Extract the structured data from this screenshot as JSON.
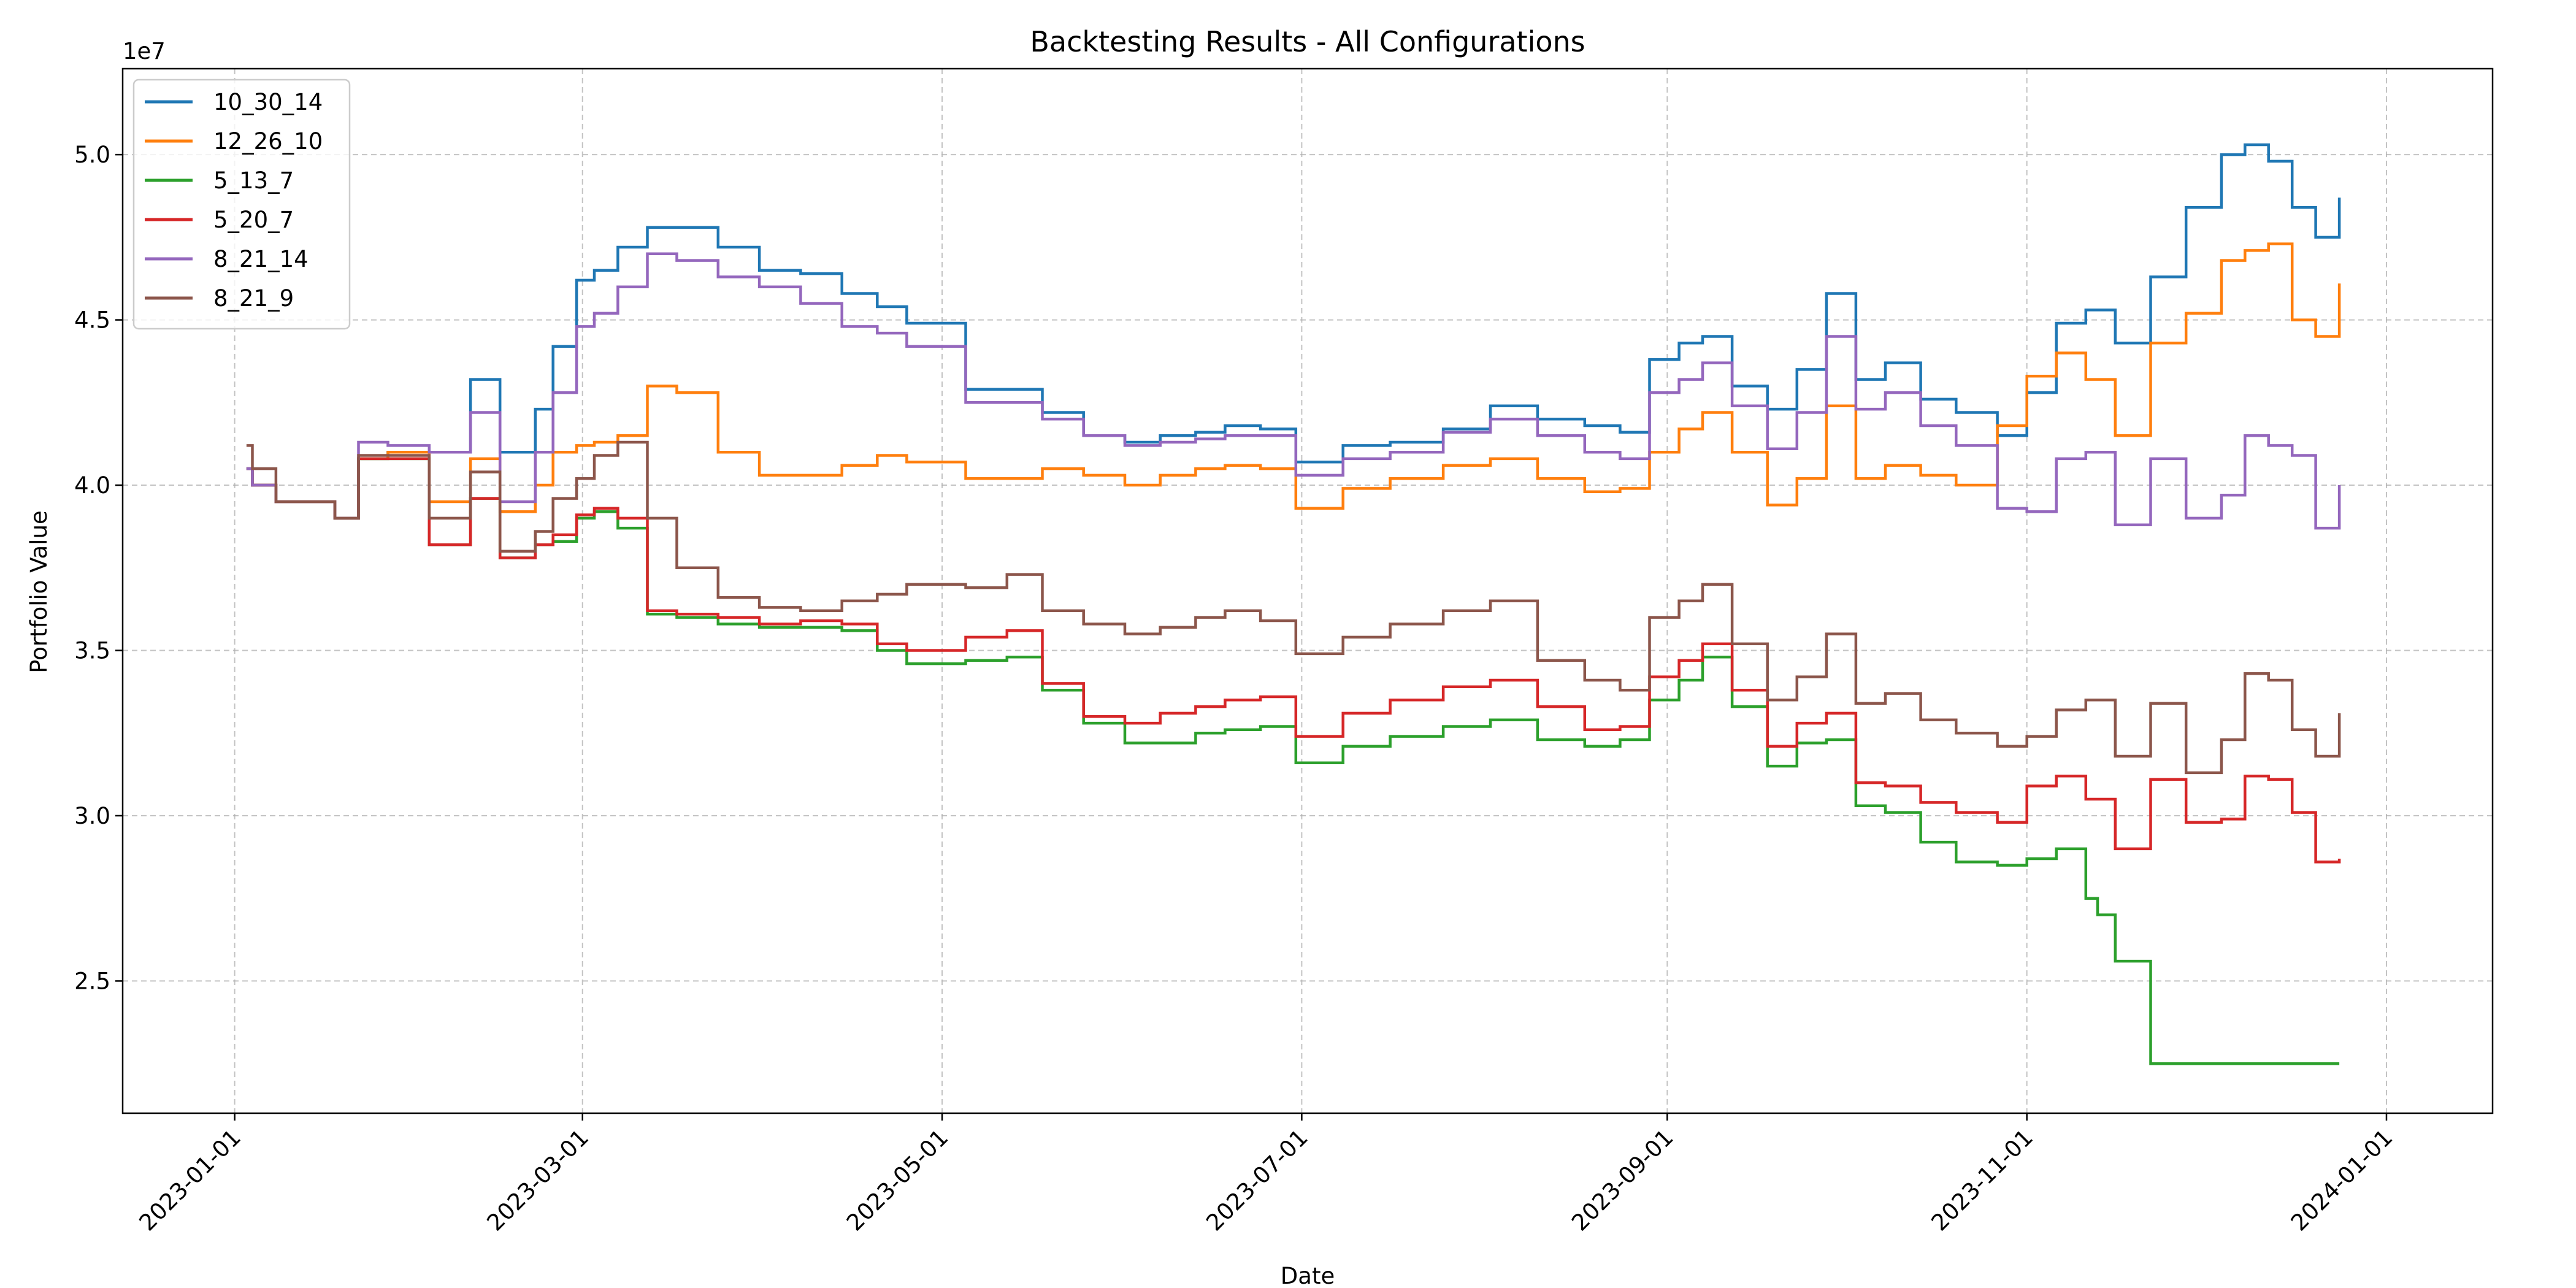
{
  "chart_data": {
    "type": "line",
    "title": "Backtesting Results - All Configurations",
    "xlabel": "Date",
    "ylabel": "Portfolio Value",
    "y_offset_label": "1e7",
    "y_scale": 10000000,
    "xlim": [
      "2022-12-13",
      "2024-01-19"
    ],
    "ylim": [
      21000000,
      52600000
    ],
    "x_ticks": [
      "2023-01-01",
      "2023-03-01",
      "2023-05-01",
      "2023-07-01",
      "2023-09-01",
      "2023-11-01",
      "2024-01-01"
    ],
    "y_ticks": [
      25000000,
      30000000,
      35000000,
      40000000,
      45000000,
      50000000
    ],
    "y_tick_labels": [
      "2.5",
      "3.0",
      "3.5",
      "4.0",
      "4.5",
      "5.0"
    ],
    "grid": true,
    "legend_position": "upper-left",
    "series": [
      {
        "name": "10_30_14",
        "color": "#1f77b4",
        "x": [
          "2023-01-03",
          "2023-01-04",
          "2023-01-08",
          "2023-01-12",
          "2023-01-18",
          "2023-01-22",
          "2023-01-27",
          "2023-02-03",
          "2023-02-10",
          "2023-02-15",
          "2023-02-21",
          "2023-02-24",
          "2023-02-28",
          "2023-03-03",
          "2023-03-07",
          "2023-03-12",
          "2023-03-17",
          "2023-03-24",
          "2023-03-31",
          "2023-04-07",
          "2023-04-14",
          "2023-04-20",
          "2023-04-25",
          "2023-05-05",
          "2023-05-12",
          "2023-05-18",
          "2023-05-25",
          "2023-06-01",
          "2023-06-07",
          "2023-06-13",
          "2023-06-18",
          "2023-06-24",
          "2023-06-30",
          "2023-07-08",
          "2023-07-16",
          "2023-07-25",
          "2023-08-02",
          "2023-08-10",
          "2023-08-18",
          "2023-08-24",
          "2023-08-29",
          "2023-09-03",
          "2023-09-07",
          "2023-09-12",
          "2023-09-18",
          "2023-09-23",
          "2023-09-28",
          "2023-10-03",
          "2023-10-08",
          "2023-10-14",
          "2023-10-20",
          "2023-10-27",
          "2023-11-01",
          "2023-11-06",
          "2023-11-11",
          "2023-11-16",
          "2023-11-22",
          "2023-11-28",
          "2023-12-04",
          "2023-12-08",
          "2023-12-12",
          "2023-12-16",
          "2023-12-20",
          "2023-12-24"
        ],
        "y": [
          40500000,
          40000000,
          39500000,
          39500000,
          39000000,
          40800000,
          41000000,
          41000000,
          43200000,
          41000000,
          42300000,
          44200000,
          46200000,
          46500000,
          47200000,
          47800000,
          47800000,
          47200000,
          46500000,
          46400000,
          45800000,
          45400000,
          44900000,
          42900000,
          42900000,
          42200000,
          41500000,
          41300000,
          41500000,
          41600000,
          41800000,
          41700000,
          40700000,
          41200000,
          41300000,
          41700000,
          42400000,
          42000000,
          41800000,
          41600000,
          43800000,
          44300000,
          44500000,
          43000000,
          42300000,
          43500000,
          45800000,
          43200000,
          43700000,
          42600000,
          42200000,
          41500000,
          42800000,
          44900000,
          45300000,
          44300000,
          46300000,
          48400000,
          50000000,
          50300000,
          49800000,
          48400000,
          47500000,
          48700000
        ]
      },
      {
        "name": "12_26_10",
        "color": "#ff7f0e",
        "x": [
          "2023-01-03",
          "2023-01-04",
          "2023-01-08",
          "2023-01-12",
          "2023-01-18",
          "2023-01-22",
          "2023-01-27",
          "2023-02-03",
          "2023-02-10",
          "2023-02-15",
          "2023-02-21",
          "2023-02-24",
          "2023-02-28",
          "2023-03-03",
          "2023-03-07",
          "2023-03-12",
          "2023-03-17",
          "2023-03-24",
          "2023-03-31",
          "2023-04-07",
          "2023-04-14",
          "2023-04-20",
          "2023-04-25",
          "2023-05-05",
          "2023-05-12",
          "2023-05-18",
          "2023-05-25",
          "2023-06-01",
          "2023-06-07",
          "2023-06-13",
          "2023-06-18",
          "2023-06-24",
          "2023-06-30",
          "2023-07-08",
          "2023-07-16",
          "2023-07-25",
          "2023-08-02",
          "2023-08-10",
          "2023-08-18",
          "2023-08-24",
          "2023-08-29",
          "2023-09-03",
          "2023-09-07",
          "2023-09-12",
          "2023-09-18",
          "2023-09-23",
          "2023-09-28",
          "2023-10-03",
          "2023-10-08",
          "2023-10-14",
          "2023-10-20",
          "2023-10-27",
          "2023-11-01",
          "2023-11-06",
          "2023-11-11",
          "2023-11-16",
          "2023-11-22",
          "2023-11-28",
          "2023-12-04",
          "2023-12-08",
          "2023-12-12",
          "2023-12-16",
          "2023-12-20",
          "2023-12-24"
        ],
        "y": [
          40500000,
          40000000,
          39500000,
          39500000,
          39000000,
          40800000,
          41000000,
          39500000,
          40800000,
          39200000,
          40000000,
          41000000,
          41200000,
          41300000,
          41500000,
          43000000,
          42800000,
          41000000,
          40300000,
          40300000,
          40600000,
          40900000,
          40700000,
          40200000,
          40200000,
          40500000,
          40300000,
          40000000,
          40300000,
          40500000,
          40600000,
          40500000,
          39300000,
          39900000,
          40200000,
          40600000,
          40800000,
          40200000,
          39800000,
          39900000,
          41000000,
          41700000,
          42200000,
          41000000,
          39400000,
          40200000,
          42400000,
          40200000,
          40600000,
          40300000,
          40000000,
          41800000,
          43300000,
          44000000,
          43200000,
          41500000,
          44300000,
          45200000,
          46800000,
          47100000,
          47300000,
          45000000,
          44500000,
          46100000
        ]
      },
      {
        "name": "5_13_7",
        "color": "#2ca02c",
        "x": [
          "2023-01-03",
          "2023-01-04",
          "2023-01-08",
          "2023-01-12",
          "2023-01-18",
          "2023-01-22",
          "2023-01-27",
          "2023-02-03",
          "2023-02-10",
          "2023-02-15",
          "2023-02-21",
          "2023-02-24",
          "2023-02-28",
          "2023-03-03",
          "2023-03-07",
          "2023-03-12",
          "2023-03-17",
          "2023-03-24",
          "2023-03-31",
          "2023-04-07",
          "2023-04-14",
          "2023-04-20",
          "2023-04-25",
          "2023-05-05",
          "2023-05-12",
          "2023-05-18",
          "2023-05-25",
          "2023-06-01",
          "2023-06-07",
          "2023-06-13",
          "2023-06-18",
          "2023-06-24",
          "2023-06-30",
          "2023-07-08",
          "2023-07-16",
          "2023-07-25",
          "2023-08-02",
          "2023-08-10",
          "2023-08-18",
          "2023-08-24",
          "2023-08-29",
          "2023-09-03",
          "2023-09-07",
          "2023-09-12",
          "2023-09-18",
          "2023-09-23",
          "2023-09-28",
          "2023-10-03",
          "2023-10-08",
          "2023-10-14",
          "2023-10-20",
          "2023-10-27",
          "2023-11-01",
          "2023-11-06",
          "2023-11-11",
          "2023-11-13",
          "2023-11-16",
          "2023-11-22",
          "2023-11-28",
          "2023-12-04",
          "2023-12-08",
          "2023-12-12",
          "2023-12-16",
          "2023-12-20",
          "2023-12-24"
        ],
        "y": [
          40500000,
          40000000,
          39500000,
          39500000,
          39000000,
          40800000,
          40800000,
          38200000,
          39600000,
          37800000,
          38200000,
          38300000,
          39000000,
          39200000,
          38700000,
          36100000,
          36000000,
          35800000,
          35700000,
          35700000,
          35600000,
          35000000,
          34600000,
          34700000,
          34800000,
          33800000,
          32800000,
          32200000,
          32200000,
          32500000,
          32600000,
          32700000,
          31600000,
          32100000,
          32400000,
          32700000,
          32900000,
          32300000,
          32100000,
          32300000,
          33500000,
          34100000,
          34800000,
          33300000,
          31500000,
          32200000,
          32300000,
          30300000,
          30100000,
          29200000,
          28600000,
          28500000,
          28700000,
          29000000,
          27500000,
          27000000,
          25600000,
          22500000,
          22500000,
          22500000,
          22500000,
          22500000,
          22500000,
          22500000,
          22500000
        ]
      },
      {
        "name": "5_20_7",
        "color": "#d62728",
        "x": [
          "2023-01-03",
          "2023-01-04",
          "2023-01-08",
          "2023-01-12",
          "2023-01-18",
          "2023-01-22",
          "2023-01-27",
          "2023-02-03",
          "2023-02-10",
          "2023-02-15",
          "2023-02-21",
          "2023-02-24",
          "2023-02-28",
          "2023-03-03",
          "2023-03-07",
          "2023-03-12",
          "2023-03-17",
          "2023-03-24",
          "2023-03-31",
          "2023-04-07",
          "2023-04-14",
          "2023-04-20",
          "2023-04-25",
          "2023-05-05",
          "2023-05-12",
          "2023-05-18",
          "2023-05-25",
          "2023-06-01",
          "2023-06-07",
          "2023-06-13",
          "2023-06-18",
          "2023-06-24",
          "2023-06-30",
          "2023-07-08",
          "2023-07-16",
          "2023-07-25",
          "2023-08-02",
          "2023-08-10",
          "2023-08-18",
          "2023-08-24",
          "2023-08-29",
          "2023-09-03",
          "2023-09-07",
          "2023-09-12",
          "2023-09-18",
          "2023-09-23",
          "2023-09-28",
          "2023-10-03",
          "2023-10-08",
          "2023-10-14",
          "2023-10-20",
          "2023-10-27",
          "2023-11-01",
          "2023-11-06",
          "2023-11-11",
          "2023-11-16",
          "2023-11-22",
          "2023-11-28",
          "2023-12-04",
          "2023-12-08",
          "2023-12-12",
          "2023-12-16",
          "2023-12-20",
          "2023-12-24"
        ],
        "y": [
          40500000,
          40000000,
          39500000,
          39500000,
          39000000,
          40800000,
          40800000,
          38200000,
          39600000,
          37800000,
          38200000,
          38500000,
          39100000,
          39300000,
          39000000,
          36200000,
          36100000,
          36000000,
          35800000,
          35900000,
          35800000,
          35200000,
          35000000,
          35400000,
          35600000,
          34000000,
          33000000,
          32800000,
          33100000,
          33300000,
          33500000,
          33600000,
          32400000,
          33100000,
          33500000,
          33900000,
          34100000,
          33300000,
          32600000,
          32700000,
          34200000,
          34700000,
          35200000,
          33800000,
          32100000,
          32800000,
          33100000,
          31000000,
          30900000,
          30400000,
          30100000,
          29800000,
          30900000,
          31200000,
          30500000,
          29000000,
          31100000,
          29800000,
          29900000,
          31200000,
          31100000,
          30100000,
          28600000,
          28700000
        ]
      },
      {
        "name": "8_21_14",
        "color": "#9467bd",
        "x": [
          "2023-01-03",
          "2023-01-04",
          "2023-01-08",
          "2023-01-12",
          "2023-01-18",
          "2023-01-22",
          "2023-01-27",
          "2023-02-03",
          "2023-02-10",
          "2023-02-15",
          "2023-02-21",
          "2023-02-24",
          "2023-02-28",
          "2023-03-03",
          "2023-03-07",
          "2023-03-12",
          "2023-03-17",
          "2023-03-24",
          "2023-03-31",
          "2023-04-07",
          "2023-04-14",
          "2023-04-20",
          "2023-04-25",
          "2023-05-05",
          "2023-05-12",
          "2023-05-18",
          "2023-05-25",
          "2023-06-01",
          "2023-06-07",
          "2023-06-13",
          "2023-06-18",
          "2023-06-24",
          "2023-06-30",
          "2023-07-08",
          "2023-07-16",
          "2023-07-25",
          "2023-08-02",
          "2023-08-10",
          "2023-08-18",
          "2023-08-24",
          "2023-08-29",
          "2023-09-03",
          "2023-09-07",
          "2023-09-12",
          "2023-09-18",
          "2023-09-23",
          "2023-09-28",
          "2023-10-03",
          "2023-10-08",
          "2023-10-14",
          "2023-10-20",
          "2023-10-27",
          "2023-11-01",
          "2023-11-06",
          "2023-11-11",
          "2023-11-16",
          "2023-11-22",
          "2023-11-28",
          "2023-12-04",
          "2023-12-08",
          "2023-12-12",
          "2023-12-16",
          "2023-12-20",
          "2023-12-24"
        ],
        "y": [
          40500000,
          40000000,
          39500000,
          39500000,
          39000000,
          41300000,
          41200000,
          41000000,
          42200000,
          39500000,
          41000000,
          42800000,
          44800000,
          45200000,
          46000000,
          47000000,
          46800000,
          46300000,
          46000000,
          45500000,
          44800000,
          44600000,
          44200000,
          42500000,
          42500000,
          42000000,
          41500000,
          41200000,
          41300000,
          41400000,
          41500000,
          41500000,
          40300000,
          40800000,
          41000000,
          41600000,
          42000000,
          41500000,
          41000000,
          40800000,
          42800000,
          43200000,
          43700000,
          42400000,
          41100000,
          42200000,
          44500000,
          42300000,
          42800000,
          41800000,
          41200000,
          39300000,
          39200000,
          40800000,
          41000000,
          38800000,
          40800000,
          39000000,
          39700000,
          41500000,
          41200000,
          40900000,
          38700000,
          40000000
        ]
      },
      {
        "name": "8_21_9",
        "color": "#8c564b",
        "x": [
          "2023-01-03",
          "2023-01-04",
          "2023-01-08",
          "2023-01-12",
          "2023-01-18",
          "2023-01-22",
          "2023-01-27",
          "2023-02-03",
          "2023-02-10",
          "2023-02-15",
          "2023-02-21",
          "2023-02-24",
          "2023-02-28",
          "2023-03-03",
          "2023-03-07",
          "2023-03-12",
          "2023-03-17",
          "2023-03-24",
          "2023-03-31",
          "2023-04-07",
          "2023-04-14",
          "2023-04-20",
          "2023-04-25",
          "2023-05-05",
          "2023-05-12",
          "2023-05-18",
          "2023-05-25",
          "2023-06-01",
          "2023-06-07",
          "2023-06-13",
          "2023-06-18",
          "2023-06-24",
          "2023-06-30",
          "2023-07-08",
          "2023-07-16",
          "2023-07-25",
          "2023-08-02",
          "2023-08-10",
          "2023-08-18",
          "2023-08-24",
          "2023-08-29",
          "2023-09-03",
          "2023-09-07",
          "2023-09-12",
          "2023-09-18",
          "2023-09-23",
          "2023-09-28",
          "2023-10-03",
          "2023-10-08",
          "2023-10-14",
          "2023-10-20",
          "2023-10-27",
          "2023-11-01",
          "2023-11-06",
          "2023-11-11",
          "2023-11-16",
          "2023-11-22",
          "2023-11-28",
          "2023-12-04",
          "2023-12-08",
          "2023-12-12",
          "2023-12-16",
          "2023-12-20",
          "2023-12-24"
        ],
        "y": [
          41200000,
          40500000,
          39500000,
          39500000,
          39000000,
          40900000,
          40900000,
          39000000,
          40400000,
          38000000,
          38600000,
          39600000,
          40200000,
          40900000,
          41300000,
          39000000,
          37500000,
          36600000,
          36300000,
          36200000,
          36500000,
          36700000,
          37000000,
          36900000,
          37300000,
          36200000,
          35800000,
          35500000,
          35700000,
          36000000,
          36200000,
          35900000,
          34900000,
          35400000,
          35800000,
          36200000,
          36500000,
          34700000,
          34100000,
          33800000,
          36000000,
          36500000,
          37000000,
          35200000,
          33500000,
          34200000,
          35500000,
          33400000,
          33700000,
          32900000,
          32500000,
          32100000,
          32400000,
          33200000,
          33500000,
          31800000,
          33400000,
          31300000,
          32300000,
          34300000,
          34100000,
          32600000,
          31800000,
          33100000
        ]
      }
    ]
  }
}
